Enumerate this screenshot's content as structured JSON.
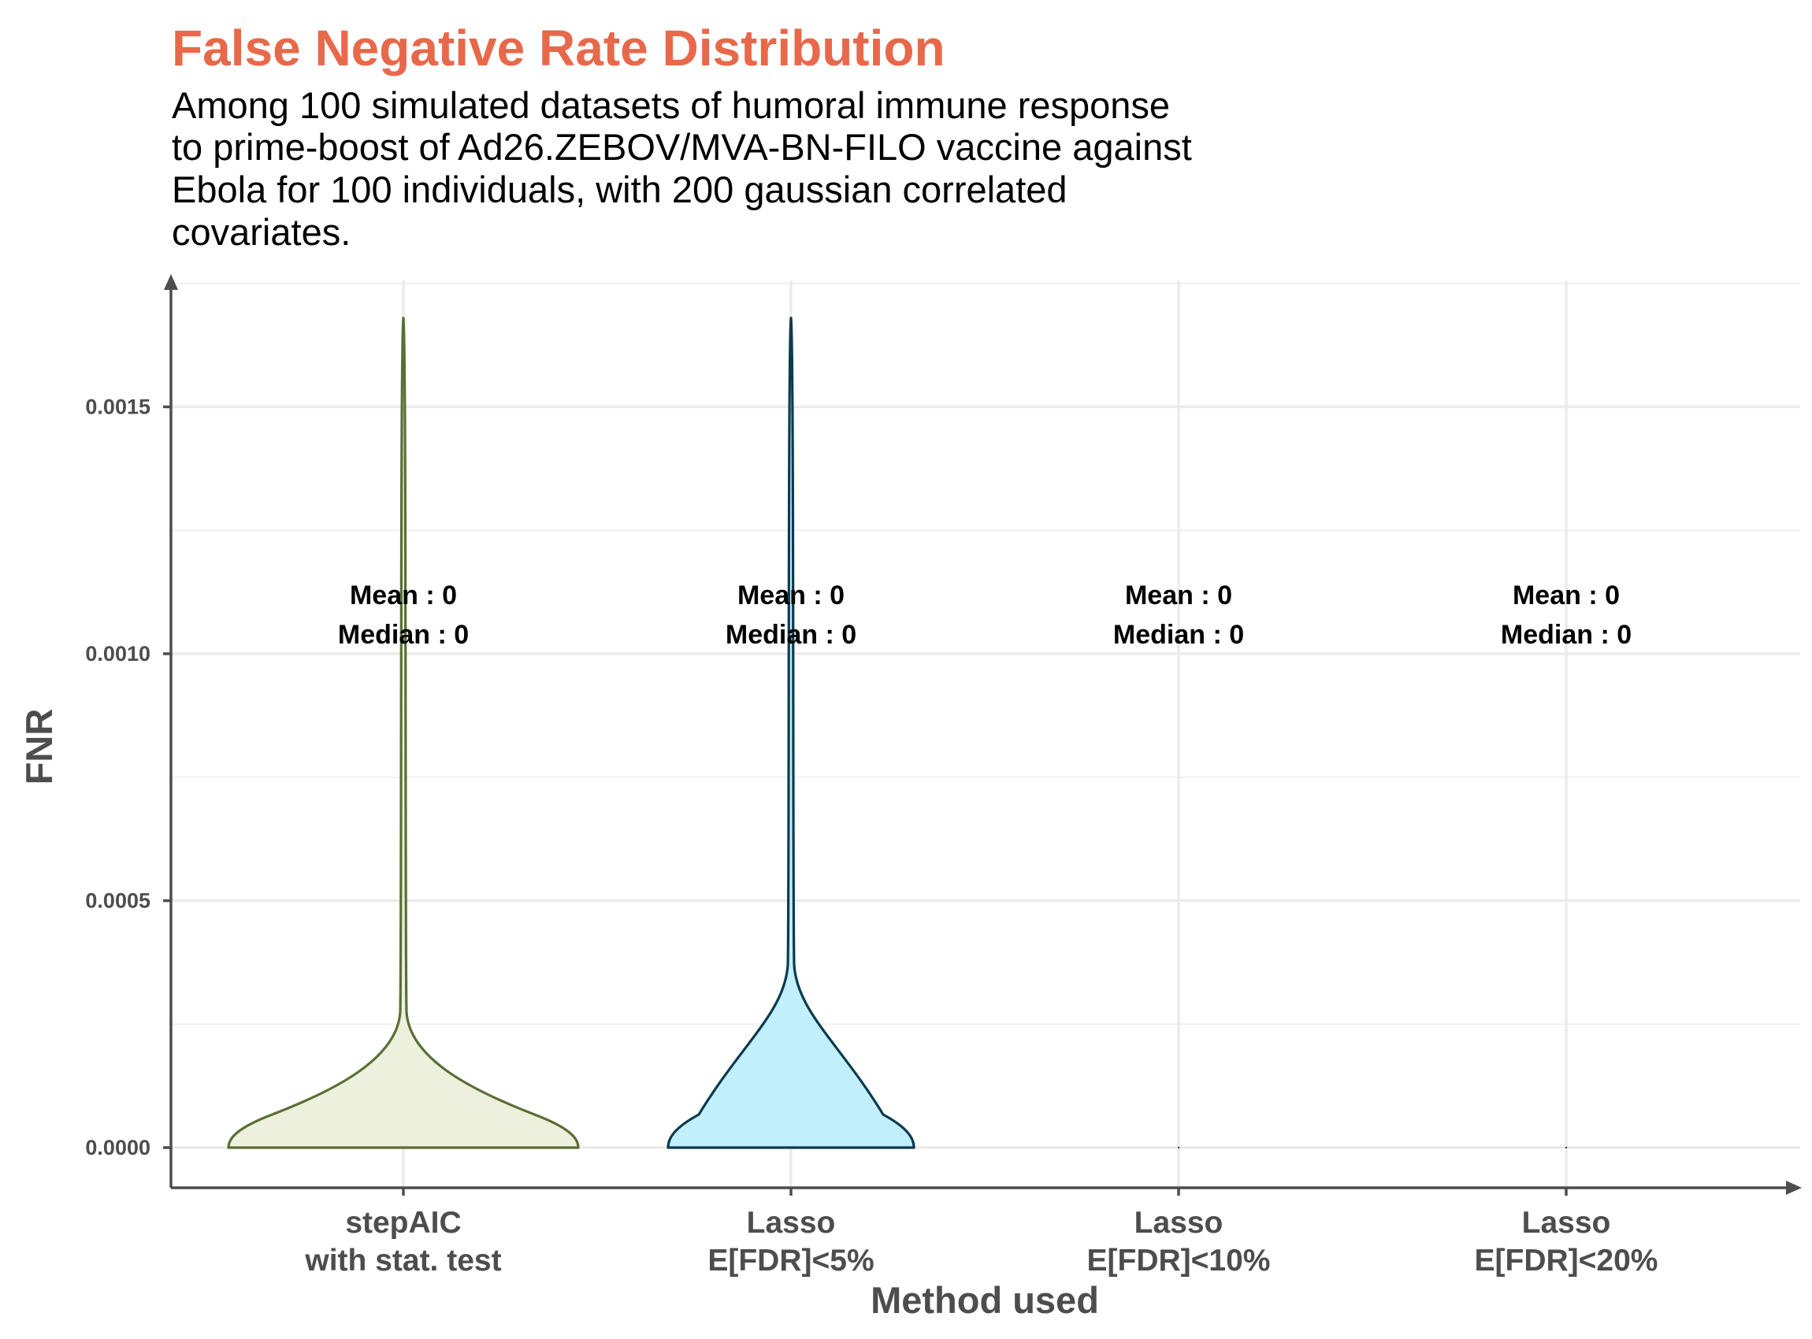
{
  "chart_data": {
    "type": "violin",
    "title": "False Negative Rate Distribution",
    "subtitle_lines": [
      "Among 100 simulated datasets of humoral immune response",
      "to prime-boost of Ad26.ZEBOV/MVA-BN-FILO vaccine against",
      "Ebola for 100 individuals, with 200 gaussian correlated",
      "covariates."
    ],
    "xlabel": "Method used",
    "ylabel": "FNR",
    "ylim": [
      -8e-05,
      0.0017
    ],
    "yticks": [
      0,
      0.0005,
      0.001,
      0.0015
    ],
    "ytick_labels": [
      "0.0000",
      "0.0005",
      "0.0010",
      "0.0015"
    ],
    "y_minor_ticks": [
      0.00025,
      0.00075,
      0.00125
    ],
    "grid": true,
    "categories": [
      {
        "label_lines": [
          "stepAIC",
          "with stat. test"
        ],
        "annotation": [
          "Mean : 0",
          "Median : 0"
        ],
        "fill": "#edf0dd",
        "stroke": "#5a6e35",
        "max_value": 0.00168
      },
      {
        "label_lines": [
          "Lasso",
          "E[FDR]<5%"
        ],
        "annotation": [
          "Mean : 0",
          "Median : 0"
        ],
        "fill": "#c1effc",
        "stroke": "#0d3a4e",
        "max_value": 0.00168
      },
      {
        "label_lines": [
          "Lasso",
          "E[FDR]<10%"
        ],
        "annotation": [
          "Mean : 0",
          "Median : 0"
        ],
        "fill": "#dddddd",
        "stroke": "#333333",
        "max_value": 0
      },
      {
        "label_lines": [
          "Lasso",
          "E[FDR]<20%"
        ],
        "annotation": [
          "Mean : 0",
          "Median : 0"
        ],
        "fill": "#dddddd",
        "stroke": "#333333",
        "max_value": 0
      }
    ],
    "annotation_y": [
      0.00112,
      0.00104
    ],
    "colors": {
      "title": "#e8684a",
      "axis": "#4d4d4d",
      "grid": "#ebebeb"
    }
  }
}
